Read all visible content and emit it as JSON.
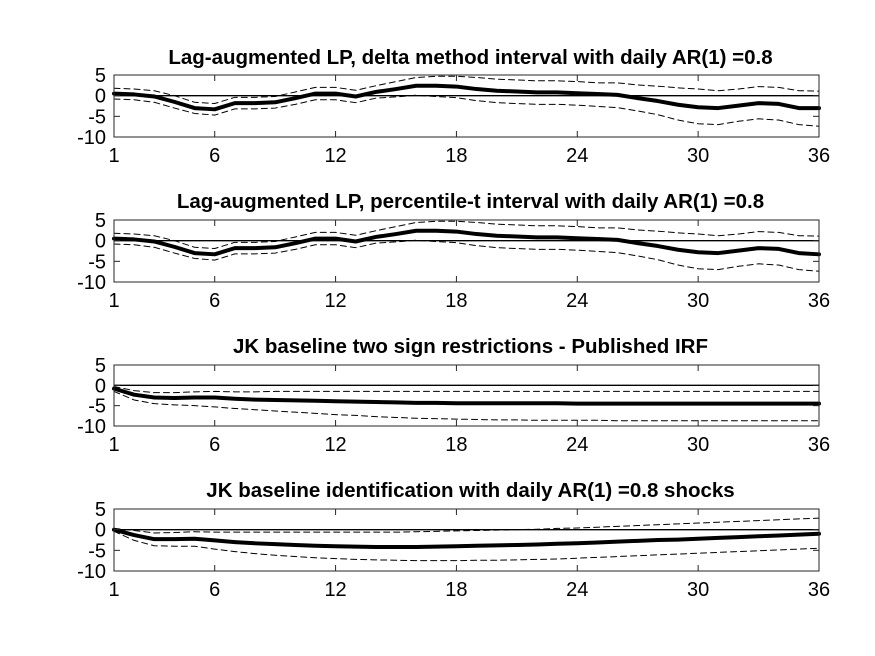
{
  "chart_data": [
    {
      "type": "line",
      "title": "Lag-augmented LP, delta method interval with daily AR(1) =0.8",
      "xlim": [
        1,
        36
      ],
      "ylim": [
        -10,
        5
      ],
      "x_ticks": [
        "1",
        "6",
        "12",
        "18",
        "24",
        "30",
        "36"
      ],
      "y_ticks": [
        "5",
        "0",
        "-5",
        "-10"
      ],
      "zero_line": true,
      "grid": false,
      "x": [
        1,
        2,
        3,
        4,
        5,
        6,
        7,
        8,
        9,
        10,
        11,
        12,
        13,
        14,
        15,
        16,
        17,
        18,
        19,
        20,
        21,
        22,
        23,
        24,
        25,
        26,
        27,
        28,
        29,
        30,
        31,
        32,
        33,
        34,
        35,
        36
      ],
      "series": [
        {
          "role": "estimate",
          "style": "solid-thick",
          "values": [
            0.5,
            0.3,
            -0.2,
            -1.5,
            -3.0,
            -3.3,
            -1.8,
            -1.8,
            -1.6,
            -0.6,
            0.5,
            0.5,
            -0.2,
            0.9,
            1.6,
            2.4,
            2.4,
            2.2,
            1.6,
            1.2,
            1.0,
            0.8,
            0.8,
            0.6,
            0.4,
            0.2,
            -0.6,
            -1.3,
            -2.2,
            -2.8,
            -3.0,
            -2.4,
            -1.8,
            -2.0,
            -3.0,
            -3.0
          ]
        },
        {
          "role": "upper",
          "style": "dashed",
          "values": [
            1.8,
            1.6,
            1.2,
            0.0,
            -1.6,
            -1.9,
            -0.4,
            -0.4,
            -0.2,
            0.9,
            2.0,
            2.0,
            1.3,
            2.4,
            3.4,
            4.4,
            4.7,
            4.7,
            4.4,
            4.0,
            3.8,
            3.6,
            3.6,
            3.4,
            3.1,
            3.1,
            2.6,
            2.3,
            1.9,
            1.6,
            1.2,
            1.6,
            2.2,
            2.0,
            1.2,
            1.1
          ]
        },
        {
          "role": "lower",
          "style": "dashed",
          "values": [
            -0.8,
            -1.0,
            -1.6,
            -3.0,
            -4.3,
            -4.7,
            -3.2,
            -3.2,
            -3.0,
            -2.1,
            -1.0,
            -1.0,
            -1.7,
            -0.6,
            -0.3,
            0.1,
            -0.2,
            -0.5,
            -1.2,
            -1.7,
            -1.9,
            -2.1,
            -2.1,
            -2.3,
            -2.6,
            -2.9,
            -3.7,
            -4.6,
            -5.9,
            -6.8,
            -7.0,
            -6.2,
            -5.6,
            -5.9,
            -7.0,
            -7.4
          ]
        }
      ]
    },
    {
      "type": "line",
      "title": "Lag-augmented LP, percentile-t interval with daily AR(1) =0.8",
      "xlim": [
        1,
        36
      ],
      "ylim": [
        -10,
        5
      ],
      "x_ticks": [
        "1",
        "6",
        "12",
        "18",
        "24",
        "30",
        "36"
      ],
      "y_ticks": [
        "5",
        "0",
        "-5",
        "-10"
      ],
      "zero_line": true,
      "grid": false,
      "x": [
        1,
        2,
        3,
        4,
        5,
        6,
        7,
        8,
        9,
        10,
        11,
        12,
        13,
        14,
        15,
        16,
        17,
        18,
        19,
        20,
        21,
        22,
        23,
        24,
        25,
        26,
        27,
        28,
        29,
        30,
        31,
        32,
        33,
        34,
        35,
        36
      ],
      "series": [
        {
          "role": "estimate",
          "style": "solid-thick",
          "values": [
            0.5,
            0.3,
            -0.2,
            -1.5,
            -3.0,
            -3.3,
            -1.8,
            -1.8,
            -1.6,
            -0.6,
            0.5,
            0.5,
            -0.2,
            0.9,
            1.6,
            2.4,
            2.4,
            2.2,
            1.6,
            1.2,
            1.0,
            0.8,
            0.8,
            0.6,
            0.4,
            0.2,
            -0.6,
            -1.3,
            -2.2,
            -2.8,
            -3.0,
            -2.4,
            -1.8,
            -2.0,
            -3.0,
            -3.3
          ]
        },
        {
          "role": "upper",
          "style": "dashed",
          "values": [
            1.8,
            1.6,
            1.2,
            0.0,
            -1.6,
            -1.9,
            -0.4,
            -0.4,
            -0.2,
            0.9,
            2.0,
            2.0,
            1.3,
            2.4,
            3.4,
            4.4,
            4.7,
            4.7,
            4.4,
            4.0,
            3.8,
            3.6,
            3.6,
            3.4,
            3.1,
            3.1,
            2.6,
            2.3,
            1.9,
            1.6,
            1.2,
            1.6,
            2.2,
            2.0,
            1.2,
            1.1
          ]
        },
        {
          "role": "lower",
          "style": "dashed",
          "values": [
            -0.8,
            -1.0,
            -1.6,
            -3.0,
            -4.3,
            -4.7,
            -3.2,
            -3.2,
            -3.0,
            -2.1,
            -1.0,
            -1.0,
            -1.7,
            -0.6,
            -0.3,
            0.1,
            -0.2,
            -0.5,
            -1.2,
            -1.7,
            -1.9,
            -2.1,
            -2.1,
            -2.3,
            -2.6,
            -2.9,
            -3.7,
            -4.6,
            -5.9,
            -6.8,
            -7.0,
            -6.2,
            -5.6,
            -5.9,
            -7.0,
            -7.4
          ]
        }
      ]
    },
    {
      "type": "line",
      "title": "JK baseline two sign restrictions - Published IRF",
      "xlim": [
        1,
        36
      ],
      "ylim": [
        -10,
        5
      ],
      "x_ticks": [
        "1",
        "6",
        "12",
        "18",
        "24",
        "30",
        "36"
      ],
      "y_ticks": [
        "5",
        "0",
        "-5",
        "-10"
      ],
      "zero_line": true,
      "grid": false,
      "x": [
        1,
        2,
        3,
        4,
        5,
        6,
        7,
        8,
        9,
        10,
        11,
        12,
        13,
        14,
        15,
        16,
        17,
        18,
        19,
        20,
        21,
        22,
        23,
        24,
        25,
        26,
        27,
        28,
        29,
        30,
        31,
        32,
        33,
        34,
        35,
        36
      ],
      "series": [
        {
          "role": "estimate",
          "style": "solid-thick",
          "values": [
            -0.8,
            -2.3,
            -3.0,
            -3.1,
            -3.0,
            -3.0,
            -3.3,
            -3.5,
            -3.6,
            -3.7,
            -3.8,
            -3.9,
            -4.0,
            -4.1,
            -4.2,
            -4.3,
            -4.3,
            -4.4,
            -4.4,
            -4.4,
            -4.4,
            -4.4,
            -4.4,
            -4.5,
            -4.5,
            -4.5,
            -4.5,
            -4.5,
            -4.5,
            -4.5,
            -4.5,
            -4.5,
            -4.5,
            -4.5,
            -4.5,
            -4.5
          ]
        },
        {
          "role": "upper",
          "style": "dashed",
          "values": [
            -0.3,
            -1.3,
            -1.8,
            -1.8,
            -1.6,
            -1.5,
            -1.6,
            -1.6,
            -1.5,
            -1.5,
            -1.5,
            -1.5,
            -1.5,
            -1.5,
            -1.5,
            -1.5,
            -1.5,
            -1.5,
            -1.5,
            -1.5,
            -1.5,
            -1.5,
            -1.5,
            -1.5,
            -1.5,
            -1.5,
            -1.5,
            -1.5,
            -1.5,
            -1.5,
            -1.5,
            -1.5,
            -1.5,
            -1.5,
            -1.5,
            -1.5
          ]
        },
        {
          "role": "lower",
          "style": "dashed",
          "values": [
            -1.5,
            -3.6,
            -4.5,
            -4.8,
            -5.0,
            -5.3,
            -5.7,
            -6.0,
            -6.3,
            -6.6,
            -6.9,
            -7.2,
            -7.4,
            -7.7,
            -7.9,
            -8.1,
            -8.2,
            -8.3,
            -8.4,
            -8.5,
            -8.5,
            -8.6,
            -8.6,
            -8.6,
            -8.6,
            -8.7,
            -8.7,
            -8.7,
            -8.7,
            -8.7,
            -8.7,
            -8.7,
            -8.7,
            -8.7,
            -8.7,
            -8.7
          ]
        }
      ]
    },
    {
      "type": "line",
      "title": "JK baseline identification with daily AR(1) =0.8 shocks",
      "xlim": [
        1,
        36
      ],
      "ylim": [
        -10,
        5
      ],
      "x_ticks": [
        "1",
        "6",
        "12",
        "18",
        "24",
        "30",
        "36"
      ],
      "y_ticks": [
        "5",
        "0",
        "-5",
        "-10"
      ],
      "zero_line": true,
      "grid": false,
      "x": [
        1,
        2,
        3,
        4,
        5,
        6,
        7,
        8,
        9,
        10,
        11,
        12,
        13,
        14,
        15,
        16,
        17,
        18,
        19,
        20,
        21,
        22,
        23,
        24,
        25,
        26,
        27,
        28,
        29,
        30,
        31,
        32,
        33,
        34,
        35,
        36
      ],
      "series": [
        {
          "role": "estimate",
          "style": "solid-thick",
          "values": [
            0.0,
            -1.3,
            -2.3,
            -2.3,
            -2.2,
            -2.6,
            -3.0,
            -3.3,
            -3.5,
            -3.7,
            -3.9,
            -4.0,
            -4.1,
            -4.2,
            -4.2,
            -4.2,
            -4.1,
            -4.0,
            -3.9,
            -3.8,
            -3.7,
            -3.6,
            -3.4,
            -3.3,
            -3.1,
            -2.9,
            -2.7,
            -2.5,
            -2.4,
            -2.2,
            -2.0,
            -1.8,
            -1.6,
            -1.4,
            -1.2,
            -1.0
          ]
        },
        {
          "role": "upper",
          "style": "dashed",
          "values": [
            0.3,
            -0.2,
            -0.8,
            -0.7,
            -0.5,
            -0.6,
            -0.6,
            -0.6,
            -0.6,
            -0.6,
            -0.6,
            -0.6,
            -0.6,
            -0.6,
            -0.6,
            -0.5,
            -0.4,
            -0.3,
            -0.2,
            -0.1,
            0.0,
            0.1,
            0.3,
            0.4,
            0.6,
            0.8,
            1.0,
            1.2,
            1.4,
            1.6,
            1.8,
            2.0,
            2.2,
            2.4,
            2.6,
            2.8
          ]
        },
        {
          "role": "lower",
          "style": "dashed",
          "values": [
            -0.4,
            -2.6,
            -3.9,
            -4.0,
            -4.0,
            -4.7,
            -5.3,
            -5.8,
            -6.2,
            -6.5,
            -6.8,
            -7.0,
            -7.2,
            -7.3,
            -7.4,
            -7.5,
            -7.5,
            -7.5,
            -7.4,
            -7.4,
            -7.3,
            -7.2,
            -7.1,
            -6.9,
            -6.7,
            -6.5,
            -6.3,
            -6.1,
            -5.9,
            -5.7,
            -5.5,
            -5.3,
            -5.1,
            -4.9,
            -4.7,
            -4.5
          ]
        }
      ]
    }
  ]
}
